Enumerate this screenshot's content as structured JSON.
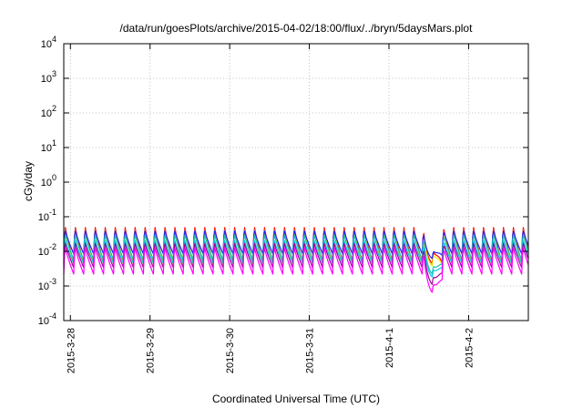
{
  "chart_data": {
    "type": "line",
    "title": "/data/run/goesPlots/archive/2015-04-02/18:00/flux/../bryn/5daysMars.plot",
    "xlabel": "Coordinated Universal Time (UTC)",
    "ylabel": "cGy/day",
    "yscale": "log",
    "ylim": [
      0.0001,
      10000
    ],
    "xlim": [
      "2015-03-27T22:00",
      "2015-04-02T18:00"
    ],
    "y_ticks": [
      {
        "base": "10",
        "exp": "-4",
        "value": 0.0001
      },
      {
        "base": "10",
        "exp": "-3",
        "value": 0.001
      },
      {
        "base": "10",
        "exp": "-2",
        "value": 0.01
      },
      {
        "base": "10",
        "exp": "-1",
        "value": 0.1
      },
      {
        "base": "10",
        "exp": "0",
        "value": 1
      },
      {
        "base": "10",
        "exp": "1",
        "value": 10
      },
      {
        "base": "10",
        "exp": "2",
        "value": 100
      },
      {
        "base": "10",
        "exp": "3",
        "value": 1000
      },
      {
        "base": "10",
        "exp": "4",
        "value": 10000
      }
    ],
    "x_ticks": [
      {
        "label": "2015-3-28",
        "value": "2015-03-28T00:00"
      },
      {
        "label": "2015-3-29",
        "value": "2015-03-29T00:00"
      },
      {
        "label": "2015-3-30",
        "value": "2015-03-30T00:00"
      },
      {
        "label": "2015-3-31",
        "value": "2015-03-31T00:00"
      },
      {
        "label": "2015-4-1",
        "value": "2015-04-01T00:00"
      },
      {
        "label": "2015-4-2",
        "value": "2015-04-02T00:00"
      }
    ],
    "grid": true,
    "legend": "none",
    "series_pattern": {
      "description_free": true,
      "cycle_hours": 3,
      "dip_start": "2015-04-01T10:00",
      "dip_end": "2015-04-01T17:00"
    },
    "series": [
      {
        "color": "#ff0000",
        "peak": 0.062,
        "trough": 0.0048,
        "dip_min": 0.0045
      },
      {
        "color": "#e8e400",
        "peak": 0.052,
        "trough": 0.0042,
        "dip_min": 0.0038
      },
      {
        "color": "#2020ff",
        "peak": 0.046,
        "trough": 0.0085,
        "dip_min": 0.0062
      },
      {
        "color": "#20c0a8",
        "peak": 0.035,
        "trough": 0.0058,
        "dip_min": 0.0022
      },
      {
        "color": "#00c8e0",
        "peak": 0.024,
        "trough": 0.0045,
        "dip_min": 0.0018
      },
      {
        "color": "#a000a0",
        "peak": 0.02,
        "trough": 0.0034,
        "dip_min": 0.0011
      },
      {
        "color": "#ff00ff",
        "peak": 0.015,
        "trough": 0.0022,
        "dip_min": 0.00065
      }
    ]
  }
}
